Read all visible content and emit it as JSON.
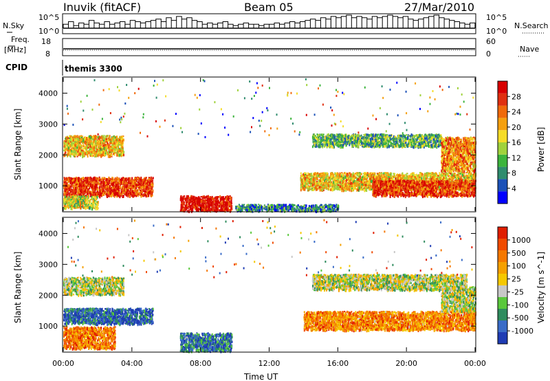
{
  "header": {
    "station": "Inuvik (fitACF)",
    "beam": "Beam 05",
    "date": "27/Mar/2010"
  },
  "top_panels": {
    "nsky_label": "N.Sky",
    "nsearch_label": "N.Search",
    "nsky_ticks": [
      "10^5",
      "10^0"
    ],
    "nsearch_ticks": [
      "10^5",
      "10^0"
    ],
    "freq_label": "Freq.",
    "freq_unit": "[MHz]",
    "freq_ticks": [
      "18",
      "8"
    ],
    "nave_label": "Nave",
    "nave_ticks": [
      "60",
      "0"
    ],
    "cpid_label": "CPID",
    "cpid_value": "themis 3300"
  },
  "chart_data": [
    {
      "type": "heatmap",
      "name": "power",
      "ylabel": "Slant Range [km]",
      "xlabel": "",
      "ylim": [
        180,
        4500
      ],
      "xlim": [
        0,
        24
      ],
      "y_ticks": [
        "1000",
        "2000",
        "3000",
        "4000"
      ],
      "y_tick_values": [
        1000,
        2000,
        3000,
        4000
      ],
      "colorbar": {
        "label": "Power [dB]",
        "ticks": [
          "4",
          "8",
          "12",
          "16",
          "20",
          "24",
          "28"
        ],
        "colors": [
          "#0000ff",
          "#1c52b8",
          "#2f8c6e",
          "#3cb43c",
          "#a0d23c",
          "#f5dc28",
          "#f5a00f",
          "#f06a0a",
          "#e03010",
          "#d80000"
        ]
      },
      "regions": [
        {
          "t": [
            0.0,
            3.5
          ],
          "r": [
            2000,
            2650
          ],
          "level": 0.6
        },
        {
          "t": [
            0.0,
            5.2
          ],
          "r": [
            700,
            1300
          ],
          "level": 0.85
        },
        {
          "t": [
            0.0,
            2.0
          ],
          "r": [
            300,
            700
          ],
          "level": 0.5
        },
        {
          "t": [
            6.8,
            9.8
          ],
          "r": [
            220,
            700
          ],
          "level": 0.95
        },
        {
          "t": [
            10.0,
            16.0
          ],
          "r": [
            220,
            420
          ],
          "level": 0.25
        },
        {
          "t": [
            13.8,
            24.0
          ],
          "r": [
            900,
            1450
          ],
          "level": 0.6
        },
        {
          "t": [
            18.0,
            24.0
          ],
          "r": [
            700,
            1200
          ],
          "level": 0.85
        },
        {
          "t": [
            14.5,
            22.0
          ],
          "r": [
            2300,
            2700
          ],
          "level": 0.35
        },
        {
          "t": [
            22.0,
            24.0
          ],
          "r": [
            1500,
            2600
          ],
          "level": 0.7
        }
      ]
    },
    {
      "type": "heatmap",
      "name": "velocity",
      "ylabel": "Slant Range [km]",
      "xlabel": "Time UT",
      "ylim": [
        180,
        4500
      ],
      "xlim": [
        0,
        24
      ],
      "x_ticks": [
        "00:00",
        "04:00",
        "08:00",
        "12:00",
        "16:00",
        "20:00",
        "00:00"
      ],
      "x_tick_values": [
        0,
        4,
        8,
        12,
        16,
        20,
        24
      ],
      "y_ticks": [
        "1000",
        "2000",
        "3000",
        "4000"
      ],
      "y_tick_values": [
        1000,
        2000,
        3000,
        4000
      ],
      "colorbar": {
        "label": "Velocity [m s^-1]",
        "ticks": [
          "1000",
          "500",
          "100",
          "25",
          "-25",
          "-100",
          "-500",
          "-1000"
        ],
        "colors": [
          "#1f3cb4",
          "#3a6cc8",
          "#2f8c5e",
          "#5ac83c",
          "#c8c8c8",
          "#f5c800",
          "#f5a000",
          "#f57800",
          "#f04b00",
          "#e01e00"
        ]
      },
      "regions": [
        {
          "t": [
            0.0,
            3.5
          ],
          "r": [
            2050,
            2600
          ],
          "level": 0.45
        },
        {
          "t": [
            0.0,
            5.2
          ],
          "r": [
            1100,
            1600
          ],
          "level": 0.12
        },
        {
          "t": [
            0.0,
            3.0
          ],
          "r": [
            300,
            1000
          ],
          "level": 0.75
        },
        {
          "t": [
            6.8,
            9.8
          ],
          "r": [
            220,
            800
          ],
          "level": 0.18
        },
        {
          "t": [
            14.0,
            24.0
          ],
          "r": [
            900,
            1500
          ],
          "level": 0.72
        },
        {
          "t": [
            14.5,
            23.5
          ],
          "r": [
            2200,
            2700
          ],
          "level": 0.45
        },
        {
          "t": [
            22.0,
            24.0
          ],
          "r": [
            1500,
            2300
          ],
          "level": 0.45
        }
      ]
    }
  ],
  "series_top": {
    "nsky": [
      0.3,
      0.5,
      0.2,
      0.4,
      0.3,
      0.6,
      0.4,
      0.3,
      0.5,
      0.3,
      0.4,
      0.5,
      0.3,
      0.6,
      0.5,
      0.4,
      0.5,
      0.6,
      0.7,
      0.5,
      0.8,
      0.6,
      0.9,
      0.7,
      0.8,
      0.6,
      0.5,
      0.3,
      0.4,
      0.3,
      0.4,
      0.5,
      0.3,
      0.2,
      0.3,
      0.4,
      0.3,
      0.3,
      0.2,
      0.3,
      0.3,
      0.4,
      0.3,
      0.4,
      0.5,
      0.4,
      0.5,
      0.6,
      0.7,
      0.6,
      0.8,
      0.7,
      0.9,
      0.8,
      0.9,
      1.0,
      0.8,
      0.9,
      0.8,
      0.7,
      0.9,
      0.8,
      0.9,
      1.0,
      0.9,
      0.8,
      0.9,
      0.7,
      0.6,
      0.7,
      0.8,
      0.9,
      1.0,
      0.8,
      0.7,
      0.6,
      0.5,
      0.4,
      0.3,
      0.4
    ],
    "freq": 0.62
  }
}
